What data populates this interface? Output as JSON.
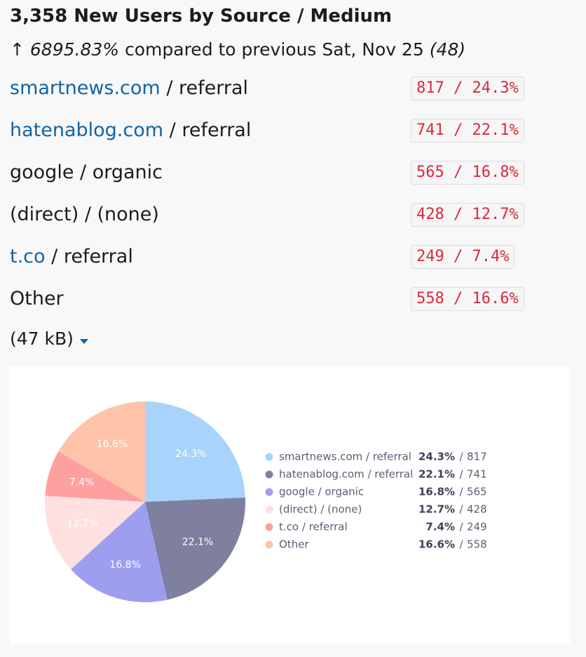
{
  "header": {
    "title": "3,358 New Users by Source / Medium",
    "arrow": "↑",
    "change": "6895.83%",
    "comparison": "compared to previous Sat, Nov 25",
    "previous": "(48)"
  },
  "rows": [
    {
      "source": "smartnews.com",
      "link": true,
      "medium": "/ referral",
      "stat": "817 / 24.3%"
    },
    {
      "source": "hatenablog.com",
      "link": true,
      "medium": "/ referral",
      "stat": "741 / 22.1%"
    },
    {
      "source": "google / organic",
      "link": false,
      "stat": "565 / 16.8%"
    },
    {
      "source": "(direct) / (none)",
      "link": false,
      "stat": "428 / 12.7%"
    },
    {
      "source": "t.co",
      "link": true,
      "medium": "/ referral",
      "stat": "249 / 7.4%"
    },
    {
      "source": "Other",
      "link": false,
      "stat": "558 / 16.6%"
    }
  ],
  "attachment": "(47 kB)",
  "chart_data": {
    "type": "pie",
    "categories": [
      "smartnews.com / referral",
      "hatenablog.com / referral",
      "google / organic",
      "(direct) / (none)",
      "t.co / referral",
      "Other"
    ],
    "values": [
      24.3,
      22.1,
      16.8,
      12.7,
      7.4,
      16.6
    ],
    "value_labels": [
      "24.3%",
      "22.1%",
      "16.8%",
      "12.7%",
      "7.4%",
      "16.6%"
    ],
    "counts": [
      817,
      741,
      565,
      428,
      249,
      558
    ],
    "separator": "/",
    "colors": [
      "#a8d4fb",
      "#7f7f9f",
      "#9d9ef0",
      "#ffe0e0",
      "#fea0a0",
      "#fec3a8"
    ],
    "legend": "right"
  }
}
